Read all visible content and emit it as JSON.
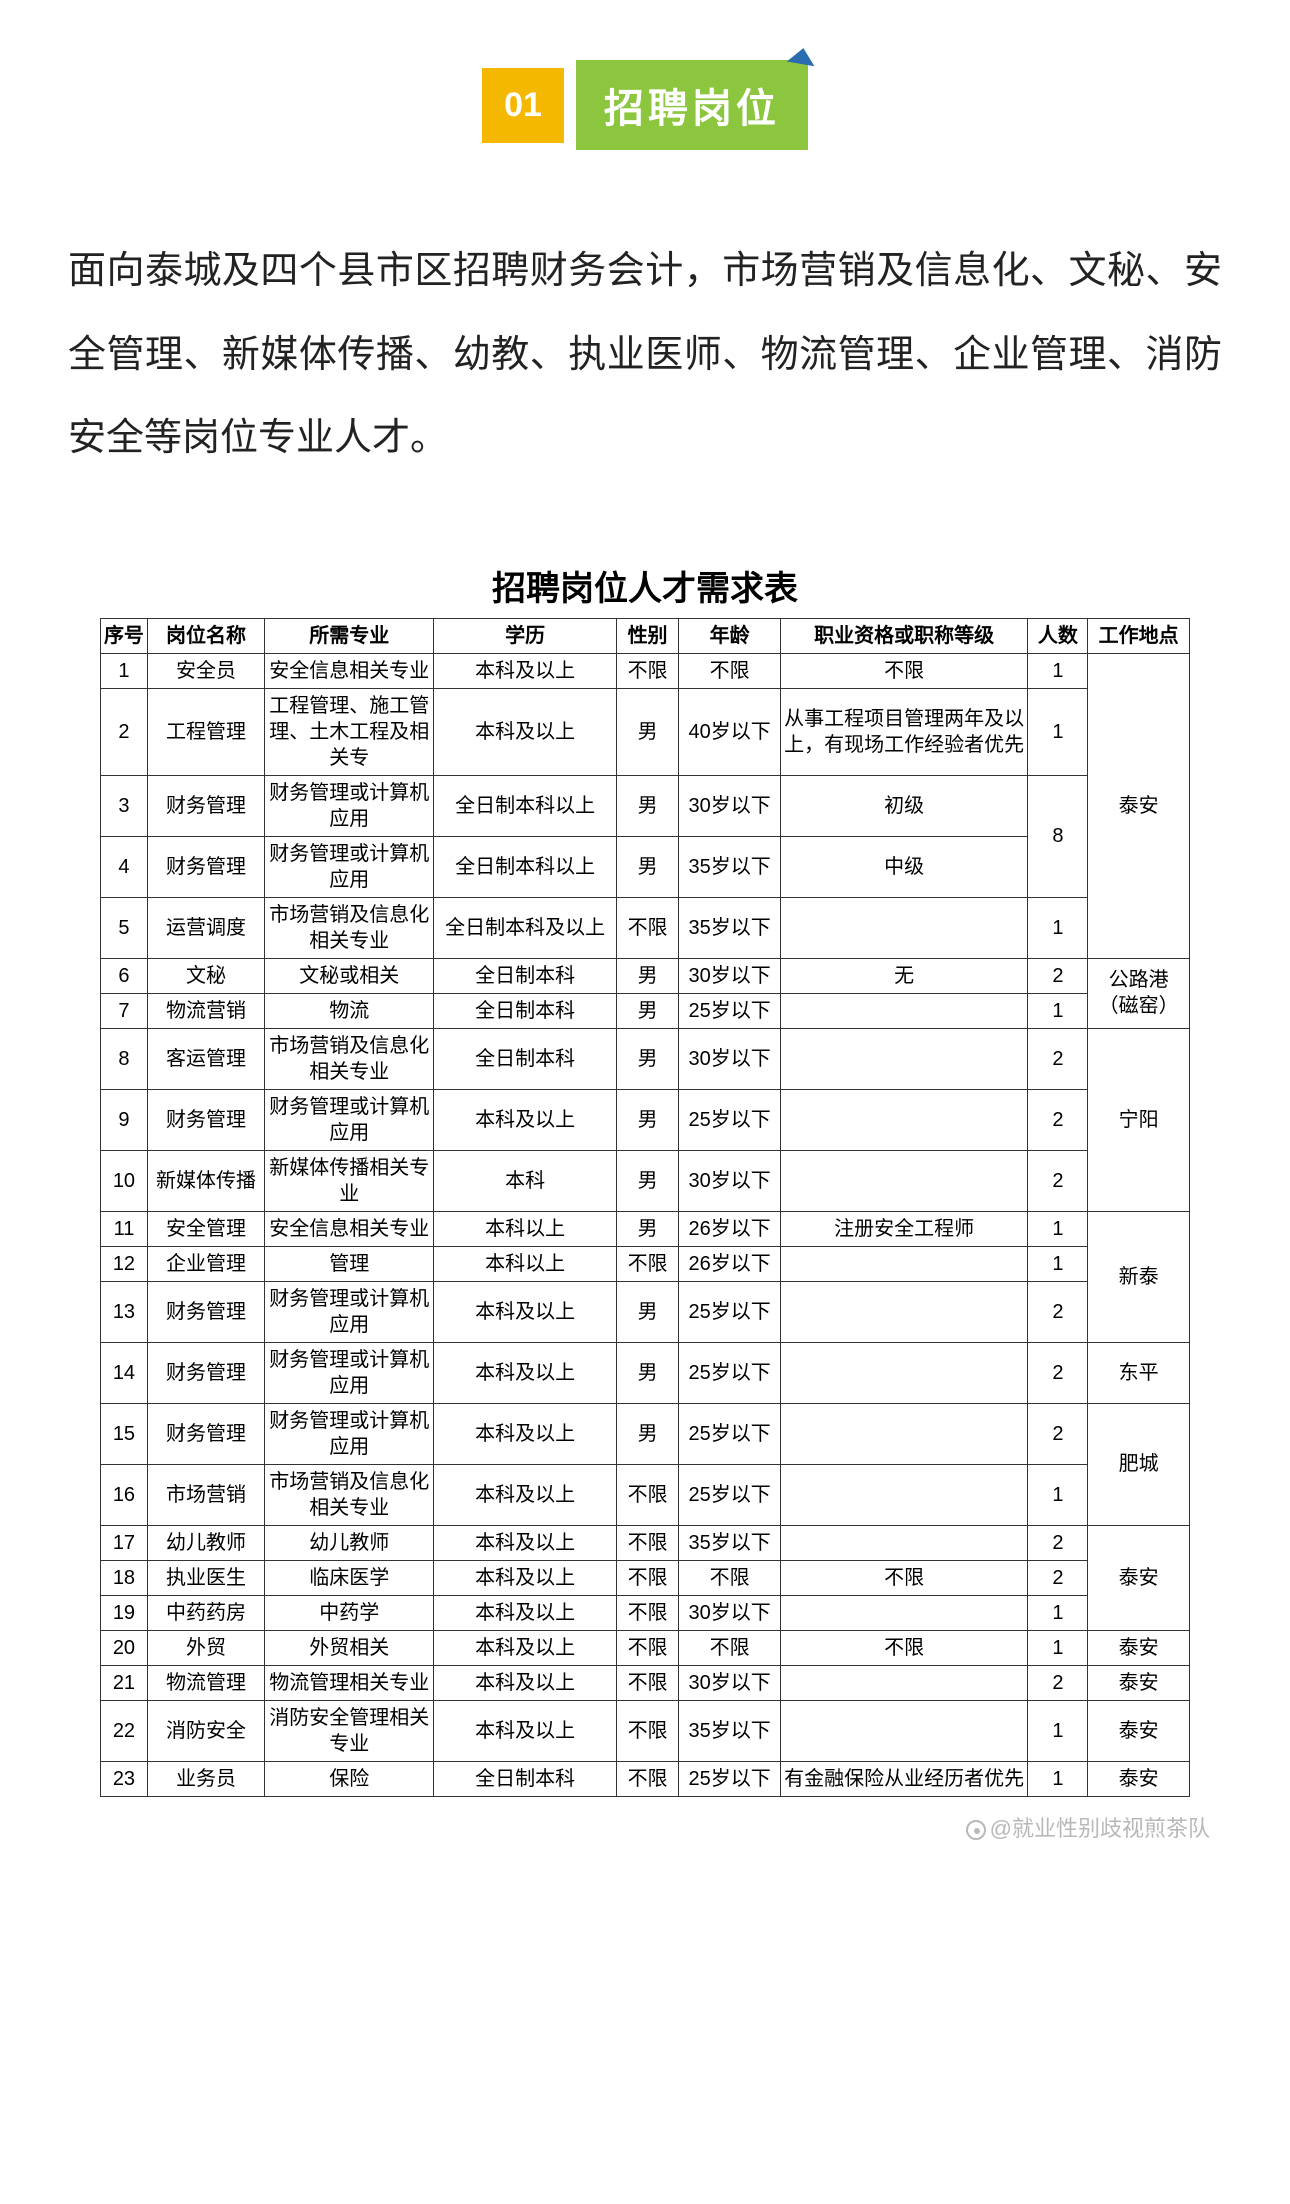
{
  "header": {
    "num": "01",
    "title": "招聘岗位"
  },
  "intro": "面向泰城及四个县市区招聘财务会计，市场营销及信息化、文秘、安全管理、新媒体传播、幼教、执业医师、物流管理、企业管理、消防安全等岗位专业人才。",
  "table": {
    "title": "招聘岗位人才需求表",
    "columns": [
      "序号",
      "岗位名称",
      "所需专业",
      "学历",
      "性别",
      "年龄",
      "职业资格或职称等级",
      "人数",
      "工作地点"
    ],
    "rows": [
      {
        "idx": "1",
        "pos": "安全员",
        "major": "安全信息相关专业",
        "edu": "本科及以上",
        "sex": "不限",
        "age": "不限",
        "qual": "不限",
        "cnt": "1"
      },
      {
        "idx": "2",
        "pos": "工程管理",
        "major": "工程管理、施工管理、土木工程及相关专",
        "edu": "本科及以上",
        "sex": "男",
        "age": "40岁以下",
        "qual": "从事工程项目管理两年及以上，有现场工作经验者优先",
        "cnt": "1"
      },
      {
        "idx": "3",
        "pos": "财务管理",
        "major": "财务管理或计算机应用",
        "edu": "全日制本科以上",
        "sex": "男",
        "age": "30岁以下",
        "qual": "初级"
      },
      {
        "idx": "4",
        "pos": "财务管理",
        "major": "财务管理或计算机应用",
        "edu": "全日制本科以上",
        "sex": "男",
        "age": "35岁以下",
        "qual": "中级"
      },
      {
        "idx": "5",
        "pos": "运营调度",
        "major": "市场营销及信息化相关专业",
        "edu": "全日制本科及以上",
        "sex": "不限",
        "age": "35岁以下",
        "qual": "",
        "cnt": "1"
      },
      {
        "idx": "6",
        "pos": "文秘",
        "major": "文秘或相关",
        "edu": "全日制本科",
        "sex": "男",
        "age": "30岁以下",
        "qual": "无",
        "cnt": "2"
      },
      {
        "idx": "7",
        "pos": "物流营销",
        "major": "物流",
        "edu": "全日制本科",
        "sex": "男",
        "age": "25岁以下",
        "qual": "",
        "cnt": "1"
      },
      {
        "idx": "8",
        "pos": "客运管理",
        "major": "市场营销及信息化相关专业",
        "edu": "全日制本科",
        "sex": "男",
        "age": "30岁以下",
        "qual": "",
        "cnt": "2"
      },
      {
        "idx": "9",
        "pos": "财务管理",
        "major": "财务管理或计算机应用",
        "edu": "本科及以上",
        "sex": "男",
        "age": "25岁以下",
        "qual": "",
        "cnt": "2"
      },
      {
        "idx": "10",
        "pos": "新媒体传播",
        "major": "新媒体传播相关专业",
        "edu": "本科",
        "sex": "男",
        "age": "30岁以下",
        "qual": "",
        "cnt": "2"
      },
      {
        "idx": "11",
        "pos": "安全管理",
        "major": "安全信息相关专业",
        "edu": "本科以上",
        "sex": "男",
        "age": "26岁以下",
        "qual": "注册安全工程师",
        "cnt": "1"
      },
      {
        "idx": "12",
        "pos": "企业管理",
        "major": "管理",
        "edu": "本科以上",
        "sex": "不限",
        "age": "26岁以下",
        "qual": "",
        "cnt": "1"
      },
      {
        "idx": "13",
        "pos": "财务管理",
        "major": "财务管理或计算机应用",
        "edu": "本科及以上",
        "sex": "男",
        "age": "25岁以下",
        "qual": "",
        "cnt": "2"
      },
      {
        "idx": "14",
        "pos": "财务管理",
        "major": "财务管理或计算机应用",
        "edu": "本科及以上",
        "sex": "男",
        "age": "25岁以下",
        "qual": "",
        "cnt": "2",
        "loc": "东平"
      },
      {
        "idx": "15",
        "pos": "财务管理",
        "major": "财务管理或计算机应用",
        "edu": "本科及以上",
        "sex": "男",
        "age": "25岁以下",
        "qual": "",
        "cnt": "2"
      },
      {
        "idx": "16",
        "pos": "市场营销",
        "major": "市场营销及信息化相关专业",
        "edu": "本科及以上",
        "sex": "不限",
        "age": "25岁以下",
        "qual": "",
        "cnt": "1"
      },
      {
        "idx": "17",
        "pos": "幼儿教师",
        "major": "幼儿教师",
        "edu": "本科及以上",
        "sex": "不限",
        "age": "35岁以下",
        "qual": "",
        "cnt": "2"
      },
      {
        "idx": "18",
        "pos": "执业医生",
        "major": "临床医学",
        "edu": "本科及以上",
        "sex": "不限",
        "age": "不限",
        "qual": "不限",
        "cnt": "2"
      },
      {
        "idx": "19",
        "pos": "中药药房",
        "major": "中药学",
        "edu": "本科及以上",
        "sex": "不限",
        "age": "30岁以下",
        "qual": "",
        "cnt": "1"
      },
      {
        "idx": "20",
        "pos": "外贸",
        "major": "外贸相关",
        "edu": "本科及以上",
        "sex": "不限",
        "age": "不限",
        "qual": "不限",
        "cnt": "1",
        "loc": "泰安"
      },
      {
        "idx": "21",
        "pos": "物流管理",
        "major": "物流管理相关专业",
        "edu": "本科及以上",
        "sex": "不限",
        "age": "30岁以下",
        "qual": "",
        "cnt": "2",
        "loc": "泰安"
      },
      {
        "idx": "22",
        "pos": "消防安全",
        "major": "消防安全管理相关专业",
        "edu": "本科及以上",
        "sex": "不限",
        "age": "35岁以下",
        "qual": "",
        "cnt": "1",
        "loc": "泰安"
      },
      {
        "idx": "23",
        "pos": "业务员",
        "major": "保险",
        "edu": "全日制本科",
        "sex": "不限",
        "age": "25岁以下",
        "qual": "有金融保险从业经历者优先",
        "cnt": "1",
        "loc": "泰安"
      }
    ],
    "loc_group1": "泰安",
    "cnt_group34": "8",
    "loc_group2": "公路港（磁窑）",
    "loc_group3": "宁阳",
    "loc_group4": "新泰",
    "loc_group5": "肥城",
    "loc_group6": "泰安"
  },
  "watermark": "@就业性别歧视煎茶队"
}
